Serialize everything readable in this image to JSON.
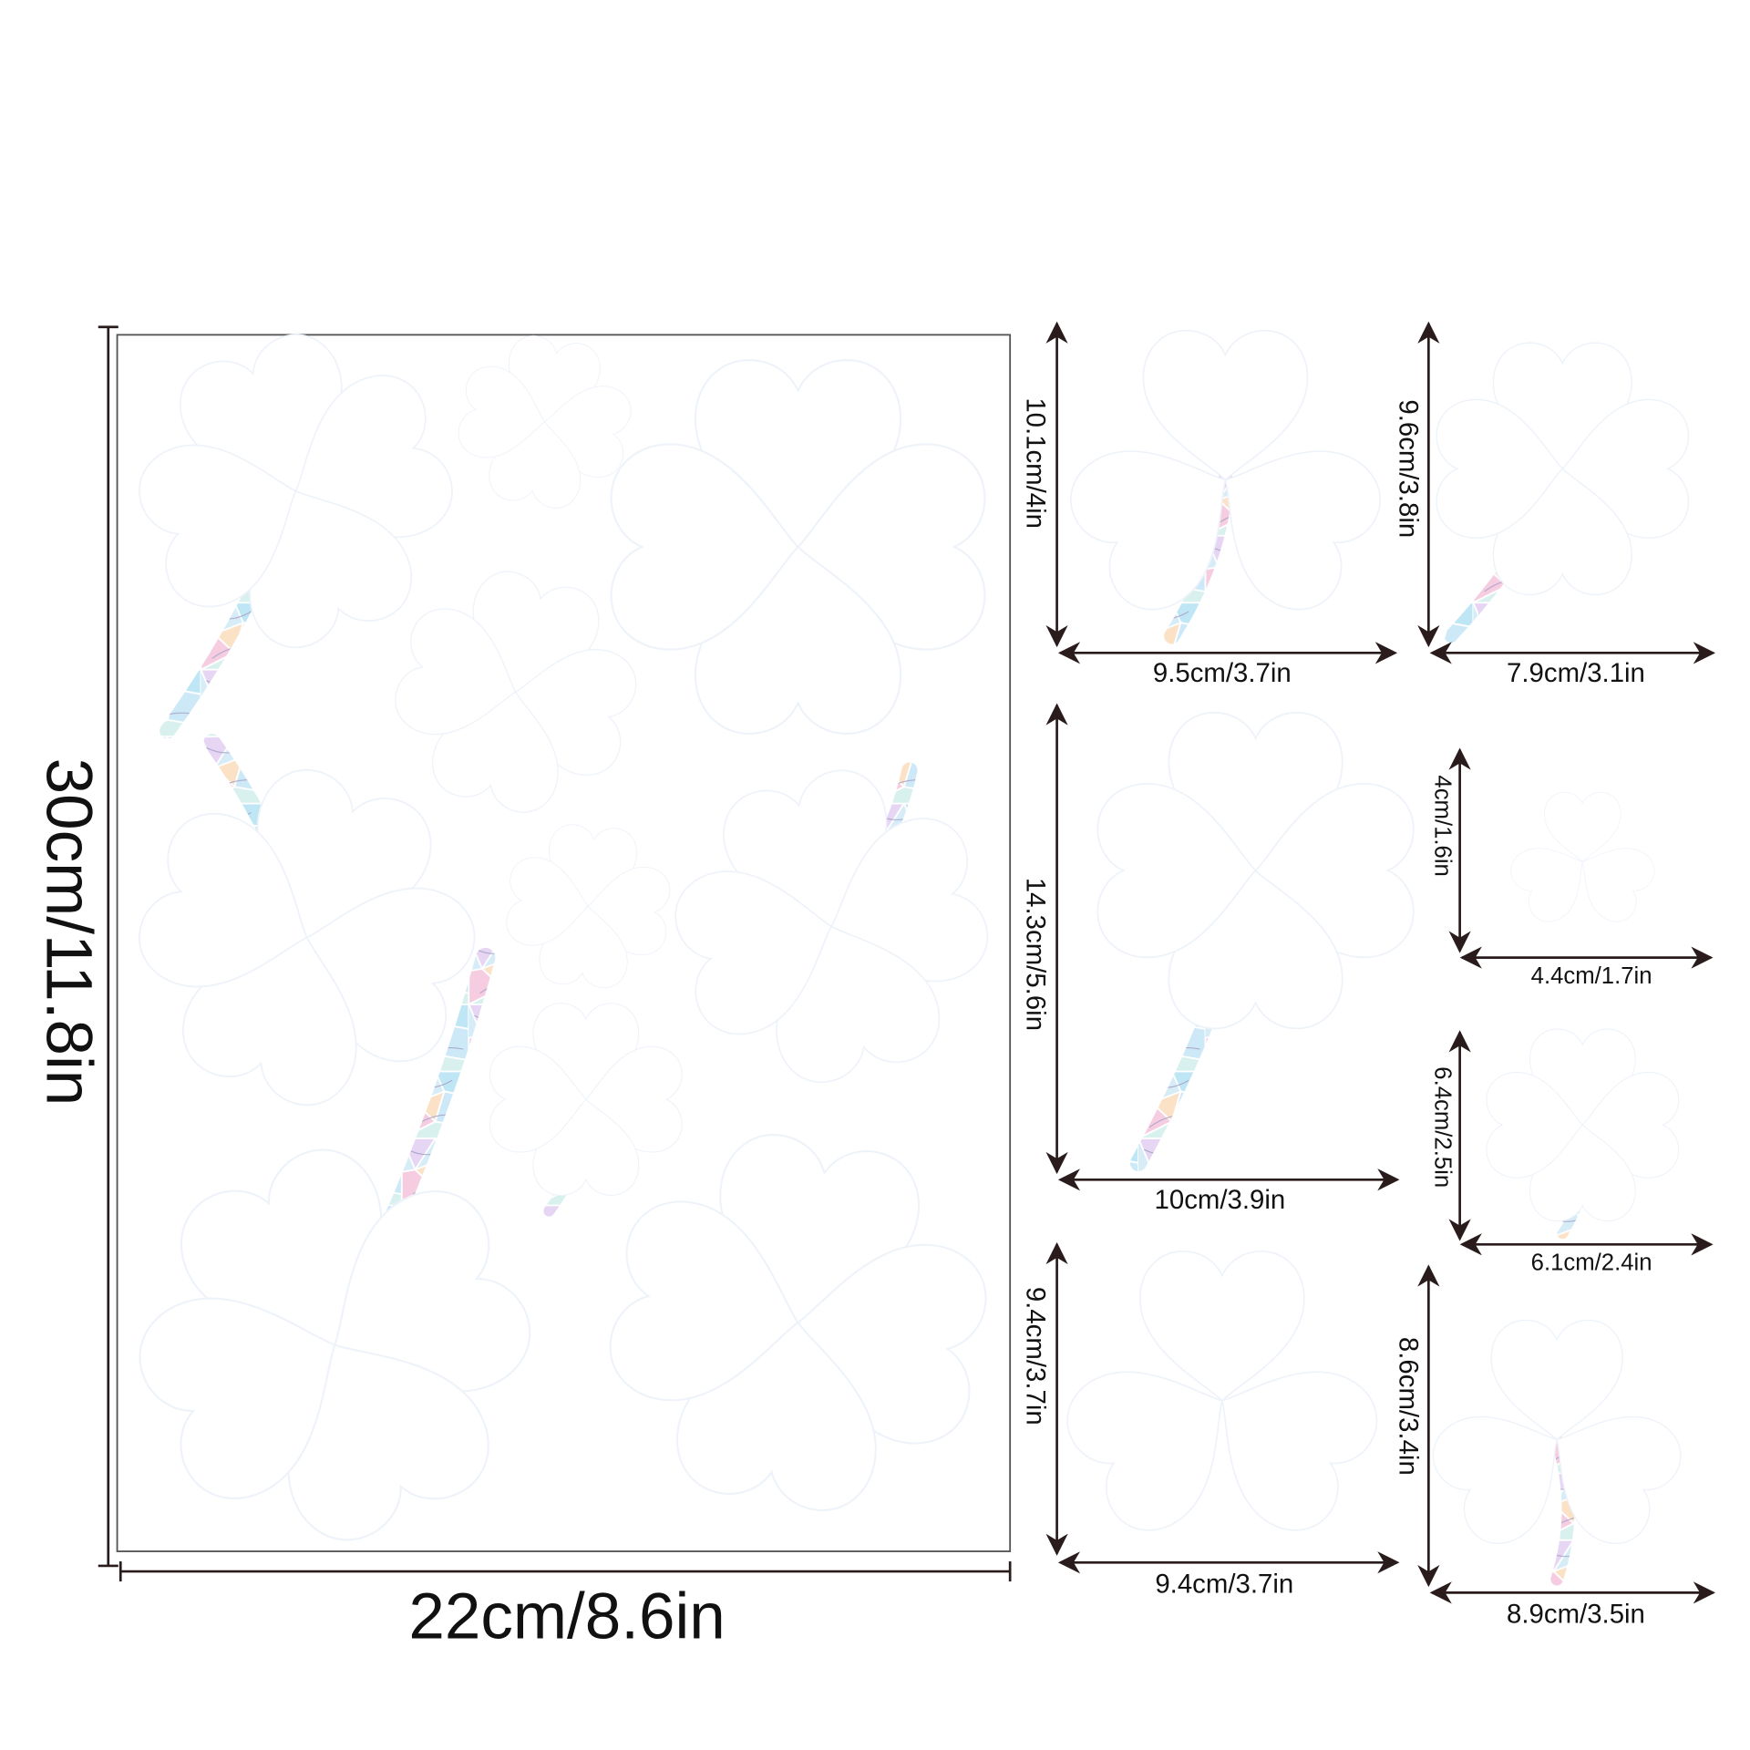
{
  "sheet": {
    "height_label": "30cm/11.8in",
    "width_label": "22cm/8.6in"
  },
  "stickers": [
    {
      "height_label": "10.1cm/4in",
      "width_label": "9.5cm/3.7in"
    },
    {
      "height_label": "9.6cm/3.8in",
      "width_label": "7.9cm/3.1in"
    },
    {
      "height_label": "14.3cm/5.6in",
      "width_label": "10cm/3.9in"
    },
    {
      "height_label": "4cm/1.6in",
      "width_label": "4.4cm/1.7in"
    },
    {
      "height_label": "6.4cm/2.5in",
      "width_label": "6.1cm/2.4in"
    },
    {
      "height_label": "9.4cm/3.7in",
      "width_label": "9.4cm/3.7in"
    },
    {
      "height_label": "8.6cm/3.4in",
      "width_label": "8.9cm/3.5in"
    }
  ],
  "colors": {
    "line": "#2a1c1c",
    "holo": [
      "#bfe6f5",
      "#e6d6f4",
      "#fbe2c6",
      "#cde9f8",
      "#f6cde0",
      "#d9f1ee"
    ]
  }
}
